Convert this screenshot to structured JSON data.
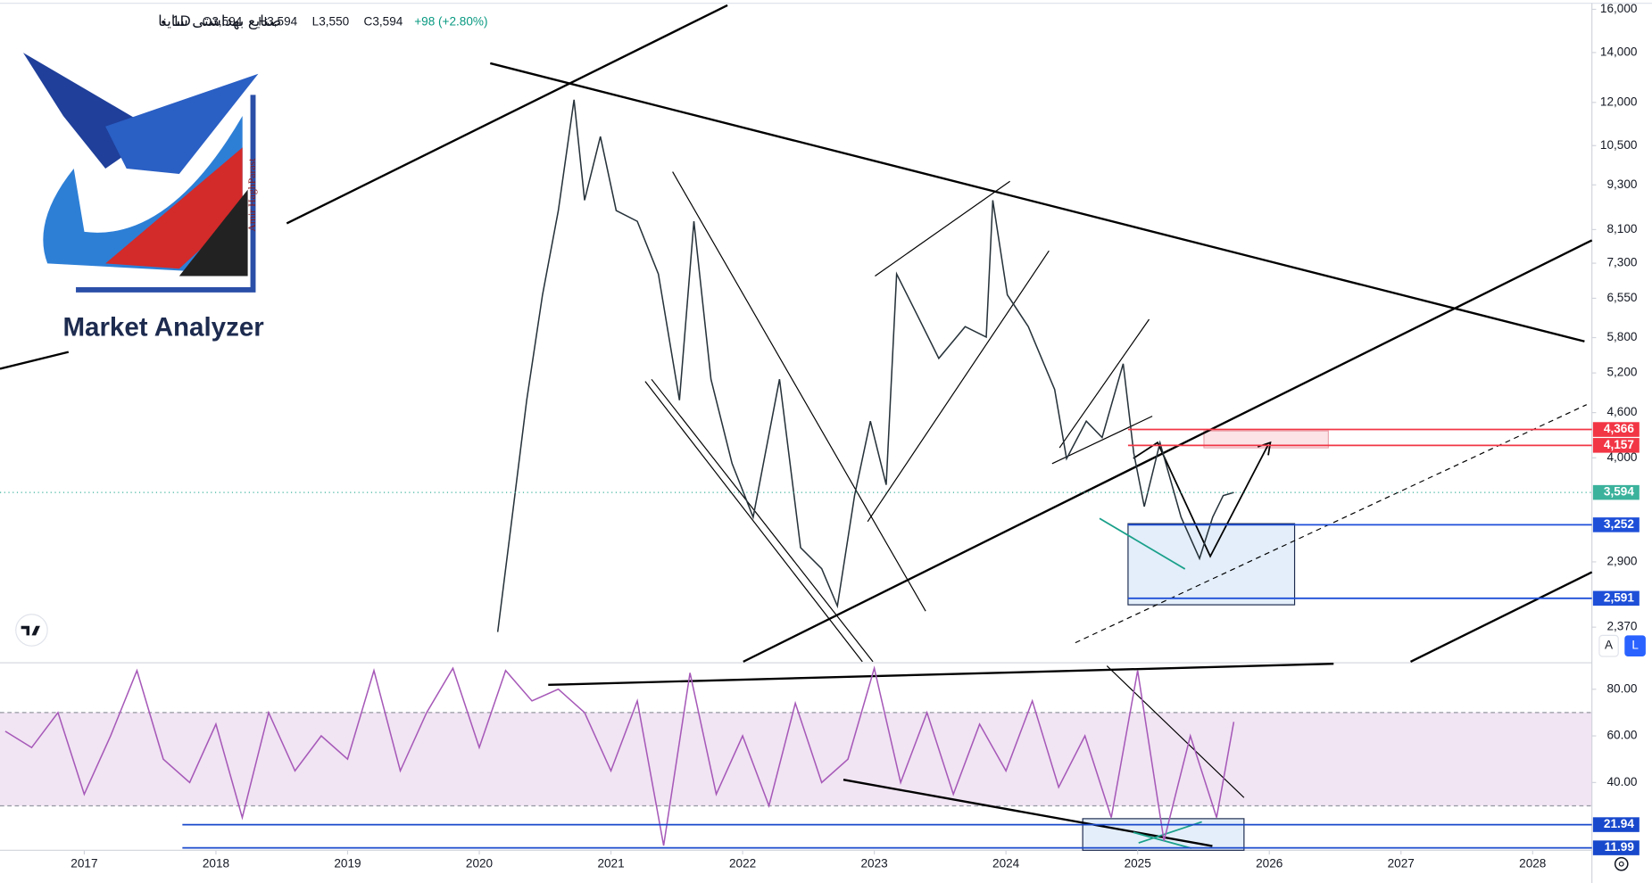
{
  "header": {
    "symbol": "صنایع بهداشتی ساینا",
    "interval": "1D",
    "open": "O3,594",
    "high": "H3,594",
    "low": "L3,550",
    "close": "C3,594",
    "change": "+98 (+2.80%)"
  },
  "logo": {
    "title": "Market Analyzer",
    "author": "Amir HaghParast"
  },
  "buttons": {
    "auto": "A",
    "log": "L"
  },
  "chart_data": [
    {
      "type": "line",
      "log_scale": true,
      "color": "#26323a",
      "x": [
        2020.14,
        2020.24,
        2020.36,
        2020.48,
        2020.6,
        2020.72,
        2020.8,
        2020.92,
        2021.04,
        2021.2,
        2021.36,
        2021.52,
        2021.63,
        2021.76,
        2021.92,
        2022.08,
        2022.28,
        2022.44,
        2022.6,
        2022.72,
        2022.85,
        2022.97,
        2023.09,
        2023.17,
        2023.33,
        2023.49,
        2023.69,
        2023.85,
        2023.9,
        2024.01,
        2024.17,
        2024.37,
        2024.46,
        2024.61,
        2024.73,
        2024.89,
        2024.97,
        2025.05,
        2025.17,
        2025.33,
        2025.47,
        2025.57,
        2025.65,
        2025.73
      ],
      "values": [
        2335,
        3230,
        4780,
        6620,
        8590,
        12100,
        8870,
        10800,
        8590,
        8310,
        7060,
        4780,
        8310,
        5100,
        3930,
        3330,
        5100,
        3030,
        2840,
        2530,
        3560,
        4480,
        3680,
        7060,
        6200,
        5440,
        6000,
        5810,
        8870,
        6620,
        6000,
        4940,
        3990,
        4480,
        4260,
        5350,
        4060,
        3440,
        4190,
        3330,
        2930,
        3330,
        3560,
        3594
      ],
      "xlim": [
        2016.36,
        2028.45
      ],
      "xticks": [
        2017,
        2018,
        2019,
        2020,
        2021,
        2022,
        2023,
        2024,
        2025,
        2026,
        2027,
        2028
      ],
      "ylim": [
        2130,
        16200
      ],
      "yticks": [
        {
          "value": 16000,
          "label": "16,000"
        },
        {
          "value": 14000,
          "label": "14,000"
        },
        {
          "value": 12000,
          "label": "12,000"
        },
        {
          "value": 10500,
          "label": "10,500"
        },
        {
          "value": 9300,
          "label": "9,300"
        },
        {
          "value": 8100,
          "label": "8,100"
        },
        {
          "value": 7300,
          "label": "7,300"
        },
        {
          "value": 6550,
          "label": "6,550"
        },
        {
          "value": 5800,
          "label": "5,800"
        },
        {
          "value": 5200,
          "label": "5,200"
        },
        {
          "value": 4600,
          "label": "4,600"
        },
        {
          "value": 4000,
          "label": "4,000"
        },
        {
          "value": 2900,
          "label": "2,900"
        },
        {
          "value": 2370,
          "label": "2,370"
        }
      ],
      "levels": [
        {
          "value": 4366,
          "label": "4,366",
          "color": "#f23645"
        },
        {
          "value": 4157,
          "label": "4,157",
          "color": "#f23645"
        },
        {
          "value": 3594,
          "label": "3,594",
          "color": "#3bb29c"
        },
        {
          "value": 3252,
          "label": "3,252",
          "color": "#1e4fd8"
        },
        {
          "value": 2591,
          "label": "2,591",
          "color": "#1e4fd8"
        }
      ]
    },
    {
      "type": "line",
      "color": "#a659b8",
      "x": [
        2016.4,
        2016.6,
        2016.8,
        2017.0,
        2017.2,
        2017.4,
        2017.6,
        2017.8,
        2018.0,
        2018.2,
        2018.4,
        2018.6,
        2018.8,
        2019.0,
        2019.2,
        2019.4,
        2019.6,
        2019.8,
        2020.0,
        2020.2,
        2020.4,
        2020.6,
        2020.8,
        2021.0,
        2021.2,
        2021.4,
        2021.6,
        2021.8,
        2022.0,
        2022.2,
        2022.4,
        2022.6,
        2022.8,
        2023.0,
        2023.2,
        2023.4,
        2023.6,
        2023.8,
        2024.0,
        2024.2,
        2024.4,
        2024.6,
        2024.8,
        2025.0,
        2025.2,
        2025.4,
        2025.6,
        2025.73
      ],
      "values": [
        62,
        55,
        70,
        35,
        60,
        88,
        50,
        40,
        65,
        25,
        70,
        45,
        60,
        50,
        88,
        45,
        70,
        89,
        55,
        88,
        75,
        80,
        70,
        45,
        75,
        13,
        87,
        35,
        60,
        30,
        74,
        40,
        50,
        89,
        40,
        70,
        35,
        65,
        45,
        75,
        38,
        60,
        25,
        88,
        15,
        60,
        25,
        66
      ],
      "ylim": [
        11.4,
        90.9
      ],
      "yticks": [
        {
          "value": 80,
          "label": "80.00"
        },
        {
          "value": 60,
          "label": "60.00"
        },
        {
          "value": 40,
          "label": "40.00"
        }
      ],
      "band": [
        30,
        70
      ],
      "levels": [
        {
          "value": 21.94,
          "label": "21.94",
          "color": "#1848cc"
        },
        {
          "value": 11.99,
          "label": "11.99",
          "color": "#1848cc"
        }
      ]
    }
  ]
}
